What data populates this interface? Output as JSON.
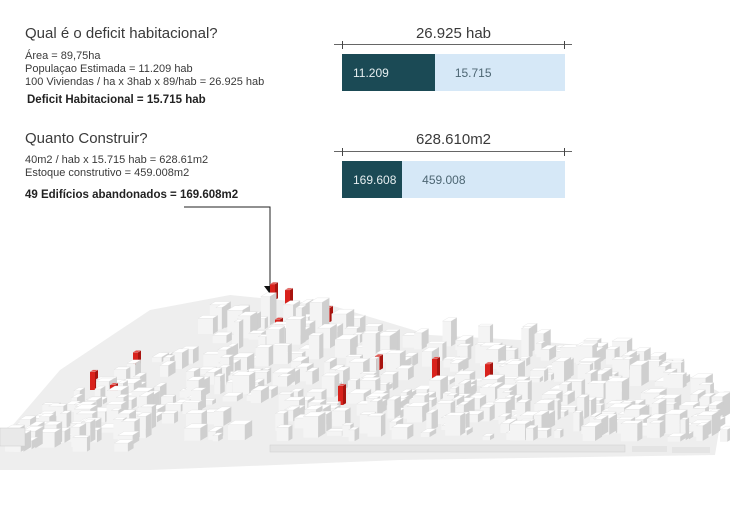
{
  "section1": {
    "title": "Qual é o deficit habitacional?",
    "lines": [
      "Área = 89,75ha",
      "Populaçao Estimada = 11.209 hab",
      "100 Viviendas / ha x 3hab x 89/hab  = 26.925 hab"
    ],
    "highlight": "Deficit Habitacional  = 15.715 hab"
  },
  "section2": {
    "title": "Quanto Construir?",
    "lines": [
      "40m2 / hab x 15.715 hab = 628.61m2",
      "Estoque construtivo = 459.008m2"
    ],
    "highlight": "49 Edifícios abandonados = 169.608m2"
  },
  "chart_data": [
    {
      "type": "bar",
      "stacked": true,
      "orientation": "horizontal",
      "total_label": "26.925 hab",
      "total": 26925,
      "segments": [
        {
          "label": "11.209",
          "value": 11209,
          "color": "#1b4a55"
        },
        {
          "label": "15.715",
          "value": 15715,
          "color": "#d6e8f7"
        }
      ]
    },
    {
      "type": "bar",
      "stacked": true,
      "orientation": "horizontal",
      "total_label": "628.610m2",
      "total": 628610,
      "segments": [
        {
          "label": "169.608",
          "value": 169608,
          "color": "#1b4a55"
        },
        {
          "label": "459.008",
          "value": 459008,
          "color": "#d6e8f7"
        }
      ]
    }
  ],
  "colors": {
    "highlight_building": "#d9221c",
    "building": "#e8e8e8"
  }
}
